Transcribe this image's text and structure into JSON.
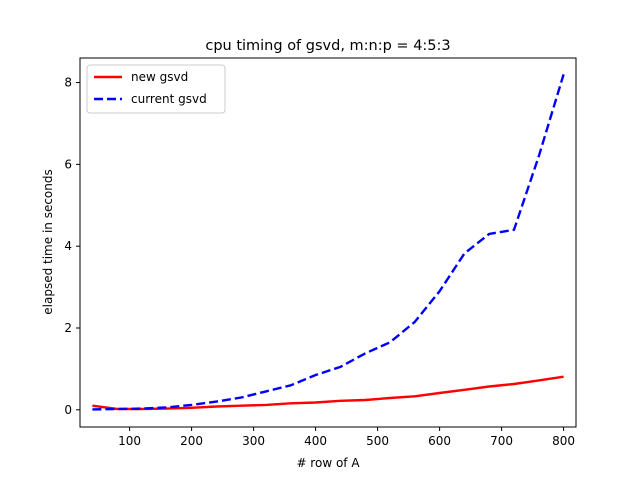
{
  "chart_data": {
    "type": "line",
    "title": "cpu timing of gsvd, m:n:p = 4:5:3",
    "xlabel": "# row of A",
    "ylabel": "elapsed time in seconds",
    "xlim": [
      20,
      820
    ],
    "ylim": [
      -0.42,
      8.6
    ],
    "xticks": [
      100,
      200,
      300,
      400,
      500,
      600,
      700,
      800
    ],
    "yticks": [
      0,
      2,
      4,
      6,
      8
    ],
    "grid": false,
    "legend_position": "top-left",
    "x": [
      40,
      80,
      120,
      160,
      200,
      240,
      280,
      320,
      360,
      400,
      440,
      480,
      520,
      560,
      600,
      640,
      680,
      720,
      760,
      800
    ],
    "series": [
      {
        "name": "new gsvd",
        "color": "#ff0000",
        "style": "solid",
        "values": [
          0.1,
          0.02,
          0.02,
          0.03,
          0.05,
          0.08,
          0.1,
          0.12,
          0.16,
          0.18,
          0.22,
          0.24,
          0.29,
          0.33,
          0.41,
          0.49,
          0.57,
          0.63,
          0.72,
          0.81
        ]
      },
      {
        "name": "current gsvd",
        "color": "#0000ff",
        "style": "dashed",
        "values": [
          0.01,
          0.02,
          0.03,
          0.06,
          0.12,
          0.2,
          0.3,
          0.45,
          0.6,
          0.85,
          1.05,
          1.38,
          1.65,
          2.15,
          2.9,
          3.82,
          4.3,
          4.4,
          6.2,
          8.2
        ]
      }
    ]
  }
}
